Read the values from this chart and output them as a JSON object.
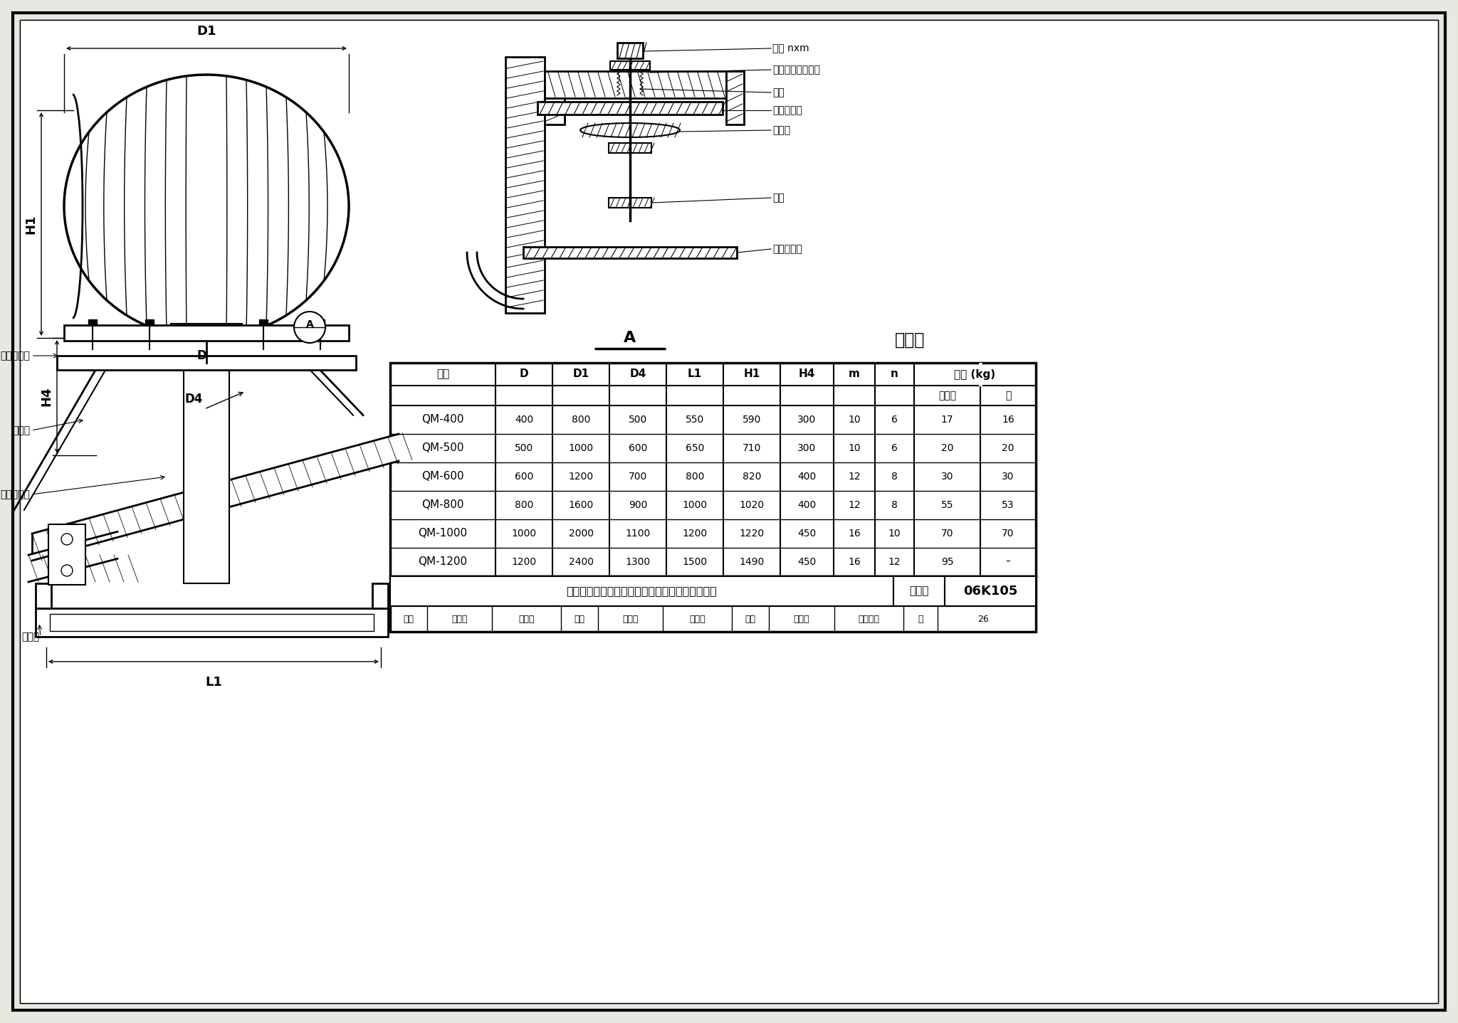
{
  "title": "旋流型屋顶自然通风器钢结构斜屋面上安装示意图",
  "figure_number": "06K105",
  "page": "26",
  "table_title": "尺寸表",
  "col_headers_row1": [
    "型号",
    "D",
    "D1",
    "D4",
    "L1",
    "H1",
    "H4",
    "m",
    "n",
    "重量 (kg)",
    ""
  ],
  "col_headers_row2": [
    "",
    "",
    "",
    "",
    "",
    "",
    "",
    "",
    "",
    "不锈钢",
    "铝"
  ],
  "data_rows": [
    [
      "QM-400",
      "400",
      "800",
      "500",
      "550",
      "590",
      "300",
      "10",
      "6",
      "17",
      "16"
    ],
    [
      "QM-500",
      "500",
      "1000",
      "600",
      "650",
      "710",
      "300",
      "10",
      "6",
      "20",
      "20"
    ],
    [
      "QM-600",
      "600",
      "1200",
      "700",
      "800",
      "820",
      "400",
      "12",
      "8",
      "30",
      "30"
    ],
    [
      "QM-800",
      "800",
      "1600",
      "900",
      "1000",
      "1020",
      "400",
      "12",
      "8",
      "55",
      "53"
    ],
    [
      "QM-1000",
      "1000",
      "2000",
      "1100",
      "1200",
      "1220",
      "450",
      "16",
      "10",
      "70",
      "70"
    ],
    [
      "QM-1200",
      "1200",
      "2400",
      "1300",
      "1500",
      "1490",
      "450",
      "16",
      "12",
      "95",
      "–"
    ]
  ],
  "right_labels": [
    "螺栓 nxm",
    "孔隙内填入油腻子",
    "垫圈",
    "旋流通风器",
    "橡胶圈",
    "垫圈",
    "薄钢板底座"
  ],
  "bg_color": "#e8e8e0"
}
